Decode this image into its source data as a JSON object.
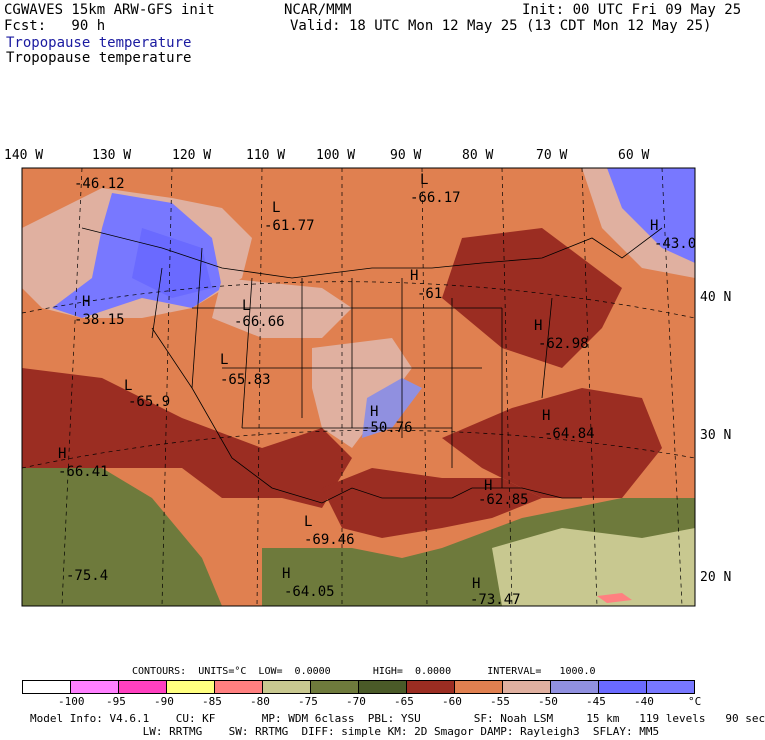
{
  "header": {
    "model": "CGWAVES 15km ARW-GFS init",
    "forecast": "Fcst:   90 h",
    "org": "NCAR/MMM",
    "init": "Init: 00 UTC Fri 09 May 25",
    "valid": "Valid: 18 UTC Mon 12 May 25 (13 CDT Mon 12 May 25)",
    "field1": "Tropopause temperature",
    "field2": "Tropopause temperature"
  },
  "longitudes": [
    "140 W",
    "130 W",
    "120 W",
    "110 W",
    "100 W",
    "90 W",
    "80 W",
    "70 W",
    "60 W"
  ],
  "latitudes": [
    "40 N",
    "30 N",
    "20 N"
  ],
  "map_labels": [
    {
      "letter": "",
      "value": "-46.12"
    },
    {
      "letter": "L",
      "value": "-61.77"
    },
    {
      "letter": "L",
      "value": "-66.17"
    },
    {
      "letter": "H",
      "value": "-43.0"
    },
    {
      "letter": "H",
      "value": "-38.15"
    },
    {
      "letter": "L",
      "value": "-66.66"
    },
    {
      "letter": "H",
      "value": "-61"
    },
    {
      "letter": "H",
      "value": "-62.98"
    },
    {
      "letter": "L",
      "value": "-65.83"
    },
    {
      "letter": "L",
      "value": "-65.9"
    },
    {
      "letter": "H",
      "value": "-50.76"
    },
    {
      "letter": "H",
      "value": "-64.84"
    },
    {
      "letter": "H",
      "value": "-66.41"
    },
    {
      "letter": "H",
      "value": "-62.85"
    },
    {
      "letter": "L",
      "value": "-69.46"
    },
    {
      "letter": "",
      "value": "-75.4"
    },
    {
      "letter": "H",
      "value": "-64.05"
    },
    {
      "letter": "H",
      "value": "-73.47"
    }
  ],
  "contours": {
    "text": "CONTOURS:  UNITS=°C  LOW=  0.0000       HIGH=  0.0000      INTERVAL=   1000.0"
  },
  "colorbar": {
    "colors": [
      "#ffffff",
      "#ff80ff",
      "#ff40c0",
      "#ffff80",
      "#ff8080",
      "#c8c890",
      "#6e7a3c",
      "#4a5a28",
      "#9b2d22",
      "#e08050",
      "#e0b0a0",
      "#9090e0",
      "#6a6aff",
      "#7878ff"
    ],
    "ticks": [
      "-100",
      "-95",
      "-90",
      "-85",
      "-80",
      "-75",
      "-70",
      "-65",
      "-60",
      "-55",
      "-50",
      "-45",
      "-40"
    ],
    "unit": "°C"
  },
  "footer": {
    "line1": "Model Info: V4.6.1    CU: KF       MP: WDM 6class  PBL: YSU        SF: Noah LSM     15 km   119 levels   90 sec",
    "line2": "                 LW: RRTMG    SW: RRTMG  DIFF: simple KM: 2D Smagor DAMP: Rayleigh3  SFLAY: MM5"
  }
}
